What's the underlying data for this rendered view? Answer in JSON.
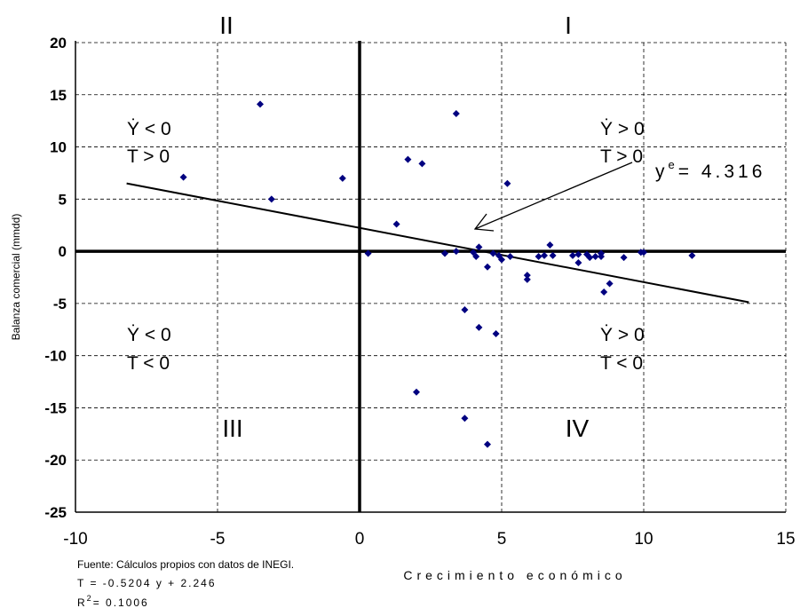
{
  "chart_data": {
    "type": "scatter",
    "x_label": "Crecimiento económico",
    "y_label": "Balanza comercial (mmdd)",
    "xlim": [
      -10,
      15
    ],
    "xticks": [
      -10,
      -5,
      0,
      5,
      10,
      15
    ],
    "ylim": [
      -25,
      20
    ],
    "yticks": [
      -25,
      -20,
      -15,
      -10,
      -5,
      0,
      5,
      10,
      15,
      20
    ],
    "grid": true,
    "series": [
      {
        "color": "#000080",
        "x": [
          -6.2,
          -3.5,
          -3.1,
          -0.6,
          0.3,
          1.3,
          1.7,
          2.2,
          2.0,
          3.0,
          3.4,
          3.4,
          3.7,
          3.7,
          4.0,
          4.1,
          4.2,
          4.2,
          4.5,
          4.5,
          4.7,
          4.8,
          4.9,
          5.0,
          5.2,
          5.3,
          5.9,
          5.9,
          6.3,
          6.5,
          6.7,
          6.8,
          7.5,
          7.7,
          7.7,
          8.0,
          8.1,
          8.3,
          8.5,
          8.5,
          8.6,
          8.8,
          9.3,
          9.9,
          10.0,
          11.7
        ],
        "values": [
          7.1,
          14.1,
          5.0,
          7.0,
          -0.2,
          2.6,
          8.8,
          8.4,
          -13.5,
          -0.2,
          13.2,
          0.0,
          -5.6,
          -16.0,
          -0.1,
          -0.5,
          0.4,
          -7.3,
          -1.5,
          -18.5,
          -0.2,
          -7.9,
          -0.4,
          -0.8,
          6.5,
          -0.5,
          -2.3,
          -2.7,
          -0.5,
          -0.4,
          0.6,
          -0.4,
          -0.4,
          -0.3,
          -1.1,
          -0.3,
          -0.6,
          -0.5,
          -0.2,
          -0.5,
          -3.9,
          -3.1,
          -0.6,
          -0.1,
          -0.1,
          -0.4
        ]
      }
    ],
    "trend": {
      "color": "#000000",
      "x": [
        -8.2,
        13.7
      ],
      "values": [
        6.51,
        -4.88
      ]
    },
    "quadrants": [
      "I",
      "II",
      "III",
      "IV"
    ],
    "annotations": {
      "q2": [
        "Ẏ < 0",
        "T > 0"
      ],
      "q1": [
        "Ẏ > 0",
        "T > 0"
      ],
      "q3": [
        "Ẏ < 0",
        "T < 0"
      ],
      "q4": [
        "Ẏ > 0",
        "T < 0"
      ]
    },
    "arrow_label": {
      "base": "y",
      "sup": "e",
      "text": "= 4.316"
    },
    "notes": [
      "Fuente: Cálculos propios con datos de INEGI.",
      "T = -0.5204 y + 2.246"
    ],
    "r2": {
      "base": "R",
      "sup": "2",
      "text": "= 0.1006"
    }
  }
}
